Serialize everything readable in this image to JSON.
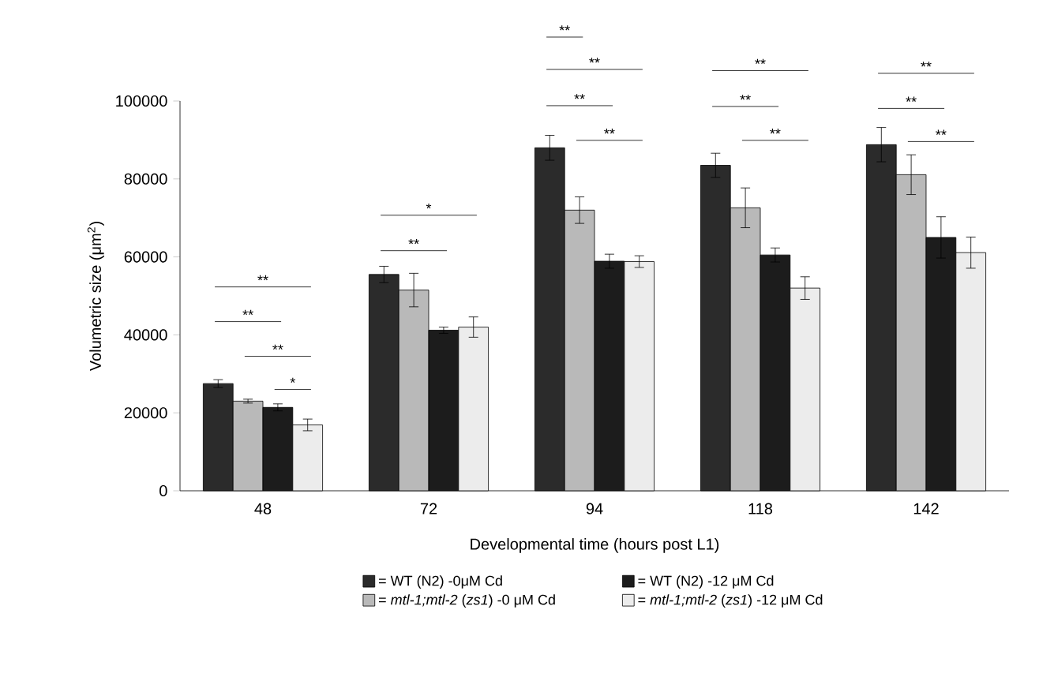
{
  "chart_data": {
    "type": "bar",
    "xlabel": "Developmental time (hours post L1)",
    "ylabel": "Volumetric size (μm$^{2}$)",
    "categories": [
      "48",
      "72",
      "94",
      "118",
      "142"
    ],
    "series": [
      {
        "name": "= WT (N2) -0μM Cd",
        "color": "#2b2b2b",
        "values": [
          27500,
          55500,
          88000,
          83500,
          88800
        ],
        "errors": [
          1000,
          2100,
          3200,
          3100,
          4400
        ]
      },
      {
        "name": "= *mtl-1;mtl-2* (*zs1*) -0 μM Cd",
        "color": "#b9b9b9",
        "values": [
          23000,
          51500,
          72000,
          72600,
          81100
        ],
        "errors": [
          500,
          4300,
          3400,
          5100,
          5100
        ]
      },
      {
        "name": "= WT (N2) -12 μM Cd",
        "color": "#1c1c1c",
        "values": [
          21400,
          41200,
          58900,
          60500,
          65000
        ],
        "errors": [
          900,
          800,
          1800,
          1800,
          5300
        ]
      },
      {
        "name": "= *mtl-1;mtl-2* (*zs1*) -12 μM Cd",
        "color": "#ececec",
        "values": [
          16900,
          42000,
          58800,
          52000,
          61100
        ],
        "errors": [
          1500,
          2600,
          1500,
          2900,
          4000
        ]
      }
    ],
    "ylim": [
      0,
      100000
    ],
    "yticks": [
      0,
      20000,
      40000,
      60000,
      80000,
      100000
    ],
    "legend": "bottom",
    "annotations": [
      "**",
      "**",
      "**",
      "*",
      "*",
      "**",
      "**",
      "**",
      "**",
      "**",
      "**",
      "**",
      "**",
      "**",
      "**",
      "**"
    ]
  }
}
